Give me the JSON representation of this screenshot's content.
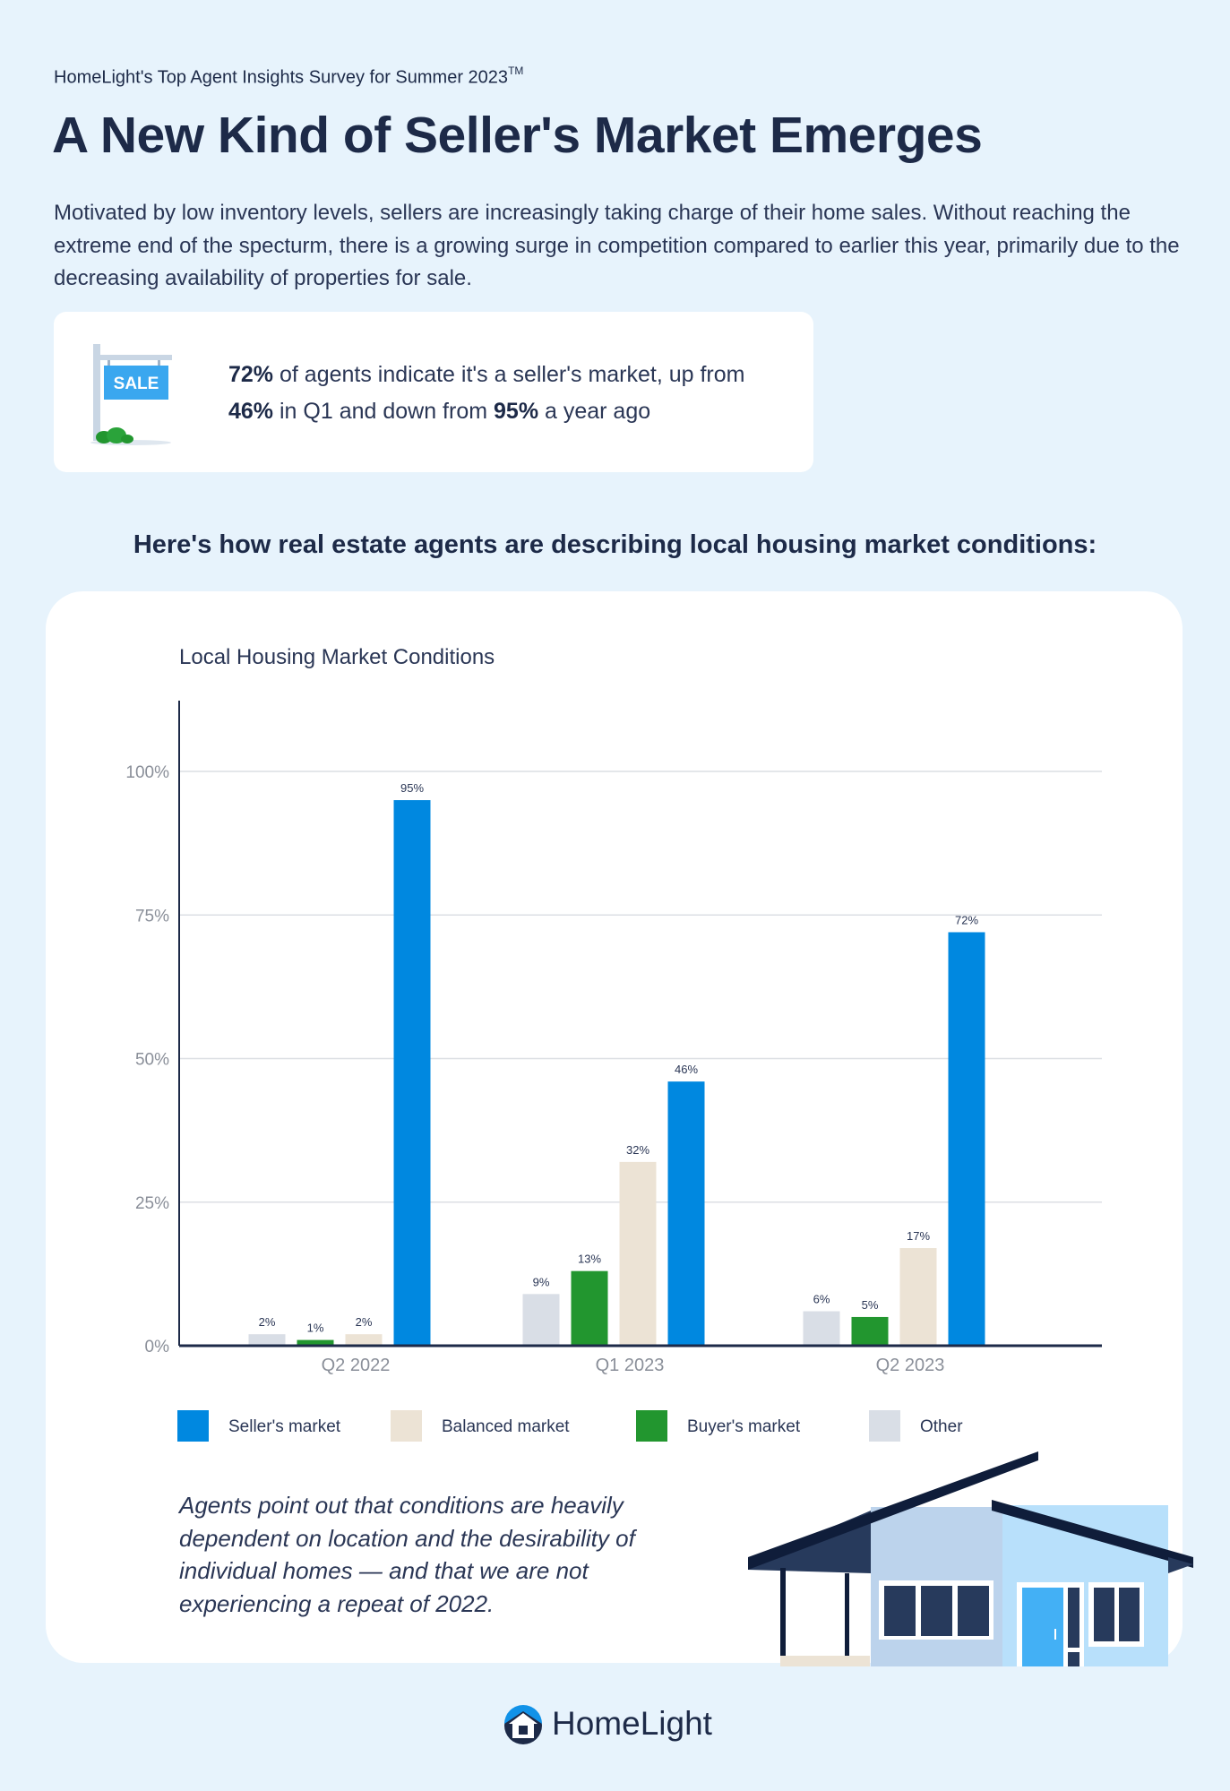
{
  "header": {
    "survey": "HomeLight's Top Agent Insights Survey for Summer 2023",
    "trademark": "TM",
    "title": "A New Kind of Seller's Market Emerges",
    "intro": "Motivated by low inventory levels, sellers are increasingly taking charge of their home sales. Without reaching the extreme end of the specturm, there is a growing surge in competition compared to earlier this year, primarily due to the decreasing availability of properties for sale."
  },
  "callout": {
    "sign_label": "SALE",
    "stat1": "72%",
    "text1": " of agents indicate it's a seller's market, up from ",
    "stat2": "46%",
    "text2": " in Q1 and down from ",
    "stat3": "95%",
    "text3": " a year ago"
  },
  "section_heading": "Here's how real estate agents are describing local housing market conditions:",
  "note": "Agents point out that conditions are heavily dependent on location and the desirability of individual homes — and that we are not experiencing a repeat of 2022.",
  "logo": {
    "text": "HomeLight"
  },
  "colors": {
    "seller": "#0088e0",
    "balanced": "#ece3d5",
    "buyer": "#22962f",
    "other": "#d9dee6",
    "navy": "#1d2a48"
  },
  "chart_data": {
    "type": "bar",
    "title": "Local Housing Market Conditions",
    "xlabel": "",
    "ylabel": "",
    "ylim": [
      0,
      100
    ],
    "yticks": [
      "0%",
      "25%",
      "50%",
      "75%",
      "100%"
    ],
    "grid": true,
    "legend_position": "bottom",
    "categories": [
      "Q2 2022",
      "Q1 2023",
      "Q2 2023"
    ],
    "series": [
      {
        "name": "Other",
        "key": "other",
        "values": [
          2,
          9,
          6
        ]
      },
      {
        "name": "Buyer's market",
        "key": "buyer",
        "values": [
          1,
          13,
          5
        ]
      },
      {
        "name": "Balanced market",
        "key": "balanced",
        "values": [
          2,
          32,
          17
        ]
      },
      {
        "name": "Seller's market",
        "key": "seller",
        "values": [
          95,
          46,
          72
        ]
      }
    ],
    "legend": [
      "Seller's market",
      "Balanced market",
      "Buyer's market",
      "Other"
    ],
    "data_labels": [
      [
        "2%",
        "1%",
        "2%",
        "95%"
      ],
      [
        "9%",
        "13%",
        "32%",
        "46%"
      ],
      [
        "6%",
        "5%",
        "17%",
        "72%"
      ]
    ]
  }
}
